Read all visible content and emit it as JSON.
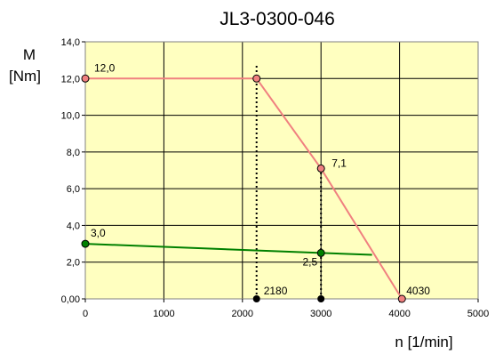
{
  "chart_data": {
    "type": "line",
    "title": "JL3-0300-046",
    "ylabel_line1": "M",
    "ylabel_line2": "[Nm]",
    "xlabel": "n [1/min]",
    "xlim": [
      0,
      5000
    ],
    "ylim": [
      0,
      14
    ],
    "xticks": [
      0,
      1000,
      2000,
      3000,
      4000,
      5000
    ],
    "xtick_labels": [
      "0",
      "1000",
      "2000",
      "3000",
      "4000",
      "5000"
    ],
    "yticks": [
      0,
      2,
      4,
      6,
      8,
      10,
      12,
      14
    ],
    "ytick_labels": [
      "0,00",
      "2,0",
      "4,0",
      "6,0",
      "8,0",
      "10,0",
      "12,0",
      "14,0"
    ],
    "grid": true,
    "legend": "none",
    "colors": {
      "plot_background": "#ffffc0",
      "series1": "#f08080",
      "series2": "#008000",
      "markers_black": "#000000"
    },
    "series": [
      {
        "color": "#f08080",
        "points": [
          [
            0,
            12.0
          ],
          [
            2180,
            12.0
          ],
          [
            3000,
            7.1
          ],
          [
            4030,
            0
          ]
        ]
      },
      {
        "color": "#008000",
        "points": [
          [
            0,
            3.0
          ],
          [
            3000,
            2.5
          ],
          [
            3650,
            2.4
          ]
        ],
        "marked_points": [
          [
            0,
            3.0
          ],
          [
            3000,
            2.5
          ]
        ]
      }
    ],
    "reference_lines": [
      {
        "x": 2180,
        "from_y": 0,
        "to_y": 12.7
      },
      {
        "x": 3000,
        "from_y": 0,
        "to_y": 7.1
      }
    ],
    "baseline_points": [
      [
        2180,
        0
      ],
      [
        3000,
        0
      ]
    ],
    "data_labels": [
      {
        "x": 0,
        "y": 12.0,
        "text": "12,0"
      },
      {
        "x": 3000,
        "y": 7.1,
        "text": "7,1"
      },
      {
        "x": 0,
        "y": 3.0,
        "text": "3,0"
      },
      {
        "x": 3000,
        "y": 2.5,
        "text": "2,5"
      },
      {
        "x": 2180,
        "y": 0,
        "text": "2180"
      },
      {
        "x": 4030,
        "y": 0,
        "text": "4030"
      }
    ]
  }
}
